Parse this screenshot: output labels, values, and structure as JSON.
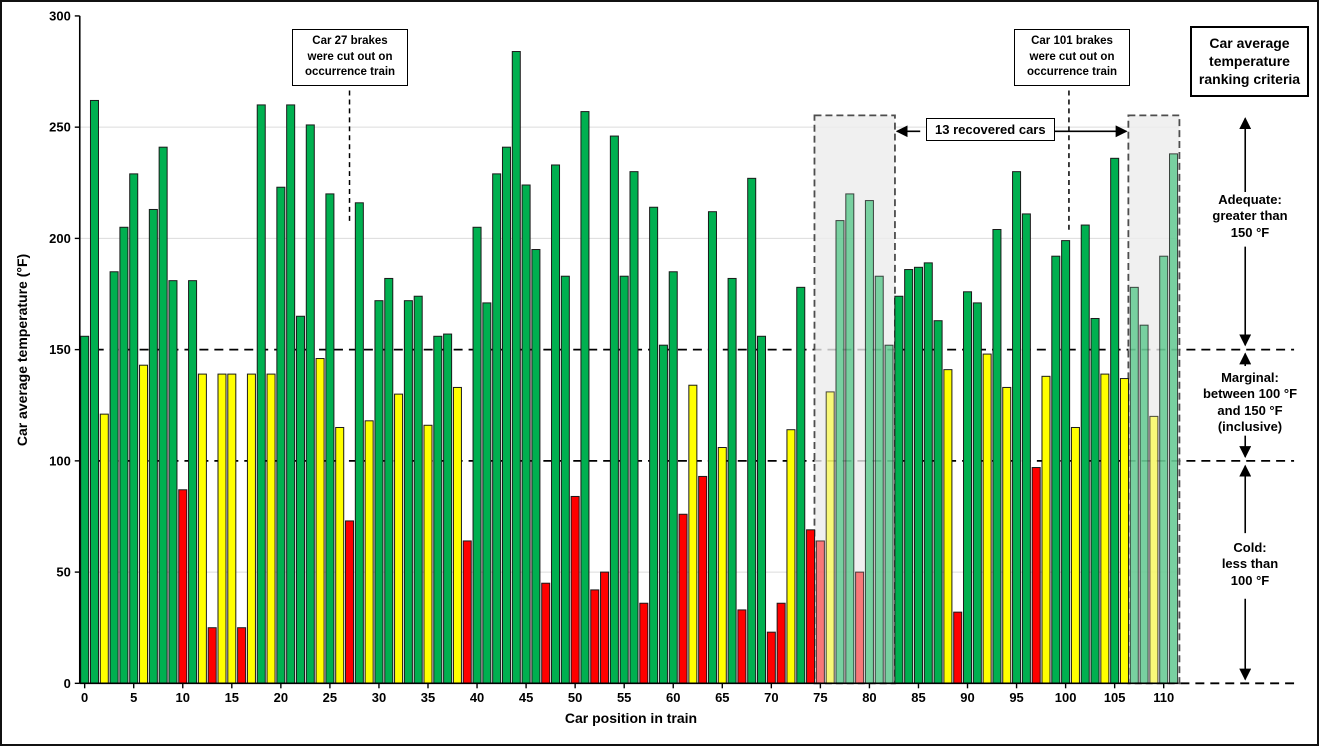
{
  "chart_data": {
    "type": "bar",
    "title": "",
    "xlabel": "Car position in train",
    "ylabel": "Car average temperature (°F)",
    "ylim": [
      0,
      300
    ],
    "yticks": [
      0,
      50,
      100,
      150,
      200,
      250,
      300
    ],
    "xticks": [
      0,
      5,
      10,
      15,
      20,
      25,
      30,
      35,
      40,
      45,
      50,
      55,
      60,
      65,
      70,
      75,
      80,
      85,
      90,
      95,
      100,
      105,
      110
    ],
    "threshold_lines": [
      100,
      150
    ],
    "grid": "light horizontal gridlines at 50-unit intervals; bold dashed lines at 100 and 150",
    "values": [
      156,
      262,
      121,
      185,
      205,
      229,
      143,
      213,
      241,
      181,
      87,
      181,
      139,
      25,
      139,
      139,
      25,
      139,
      260,
      139,
      223,
      260,
      165,
      251,
      146,
      220,
      115,
      73,
      216,
      118,
      172,
      182,
      130,
      172,
      174,
      116,
      156,
      157,
      133,
      64,
      205,
      171,
      229,
      241,
      284,
      224,
      195,
      45,
      233,
      183,
      84,
      257,
      42,
      50,
      246,
      183,
      230,
      36,
      214,
      152,
      185,
      76,
      134,
      93,
      212,
      106,
      182,
      33,
      227,
      156,
      23,
      36,
      114,
      178,
      69,
      64,
      131,
      208,
      220,
      50,
      217,
      183,
      152,
      174,
      186,
      187,
      189,
      163,
      141,
      32,
      176,
      171,
      148,
      204,
      133,
      230,
      211,
      97,
      138,
      192,
      199,
      115,
      206,
      164,
      139,
      236,
      137,
      178,
      161,
      120,
      192,
      238
    ],
    "recovered_ranges": [
      [
        75,
        82
      ],
      [
        107,
        111
      ]
    ],
    "rules": {
      "adequate_min": 150,
      "cold_max": 100
    },
    "colors": {
      "adequate": "#00B050",
      "marginal": "#FFFF00",
      "cold": "#FF0000",
      "bar_border": "#1a1a1a",
      "gridline": "#dcdcdc",
      "recovered_fill": "#ececec",
      "recovered_border": "#4d4d4d",
      "axis": "#000000"
    }
  },
  "annotations": {
    "car27": {
      "text": "Car 27 brakes\nwere cut out on\noccurrence train"
    },
    "car101": {
      "text": "Car 101 brakes\nwere cut out on\noccurrence train"
    },
    "recovered_label": "13 recovered cars"
  },
  "legend": {
    "title": "Car average\ntemperature\nranking criteria",
    "zones": [
      {
        "name": "adequate",
        "text": "Adequate:\ngreater than\n150 °F"
      },
      {
        "name": "marginal",
        "text": "Marginal:\nbetween 100 °F\nand 150 °F\n(inclusive)"
      },
      {
        "name": "cold",
        "text": "Cold:\nless than\n100 °F"
      }
    ]
  }
}
